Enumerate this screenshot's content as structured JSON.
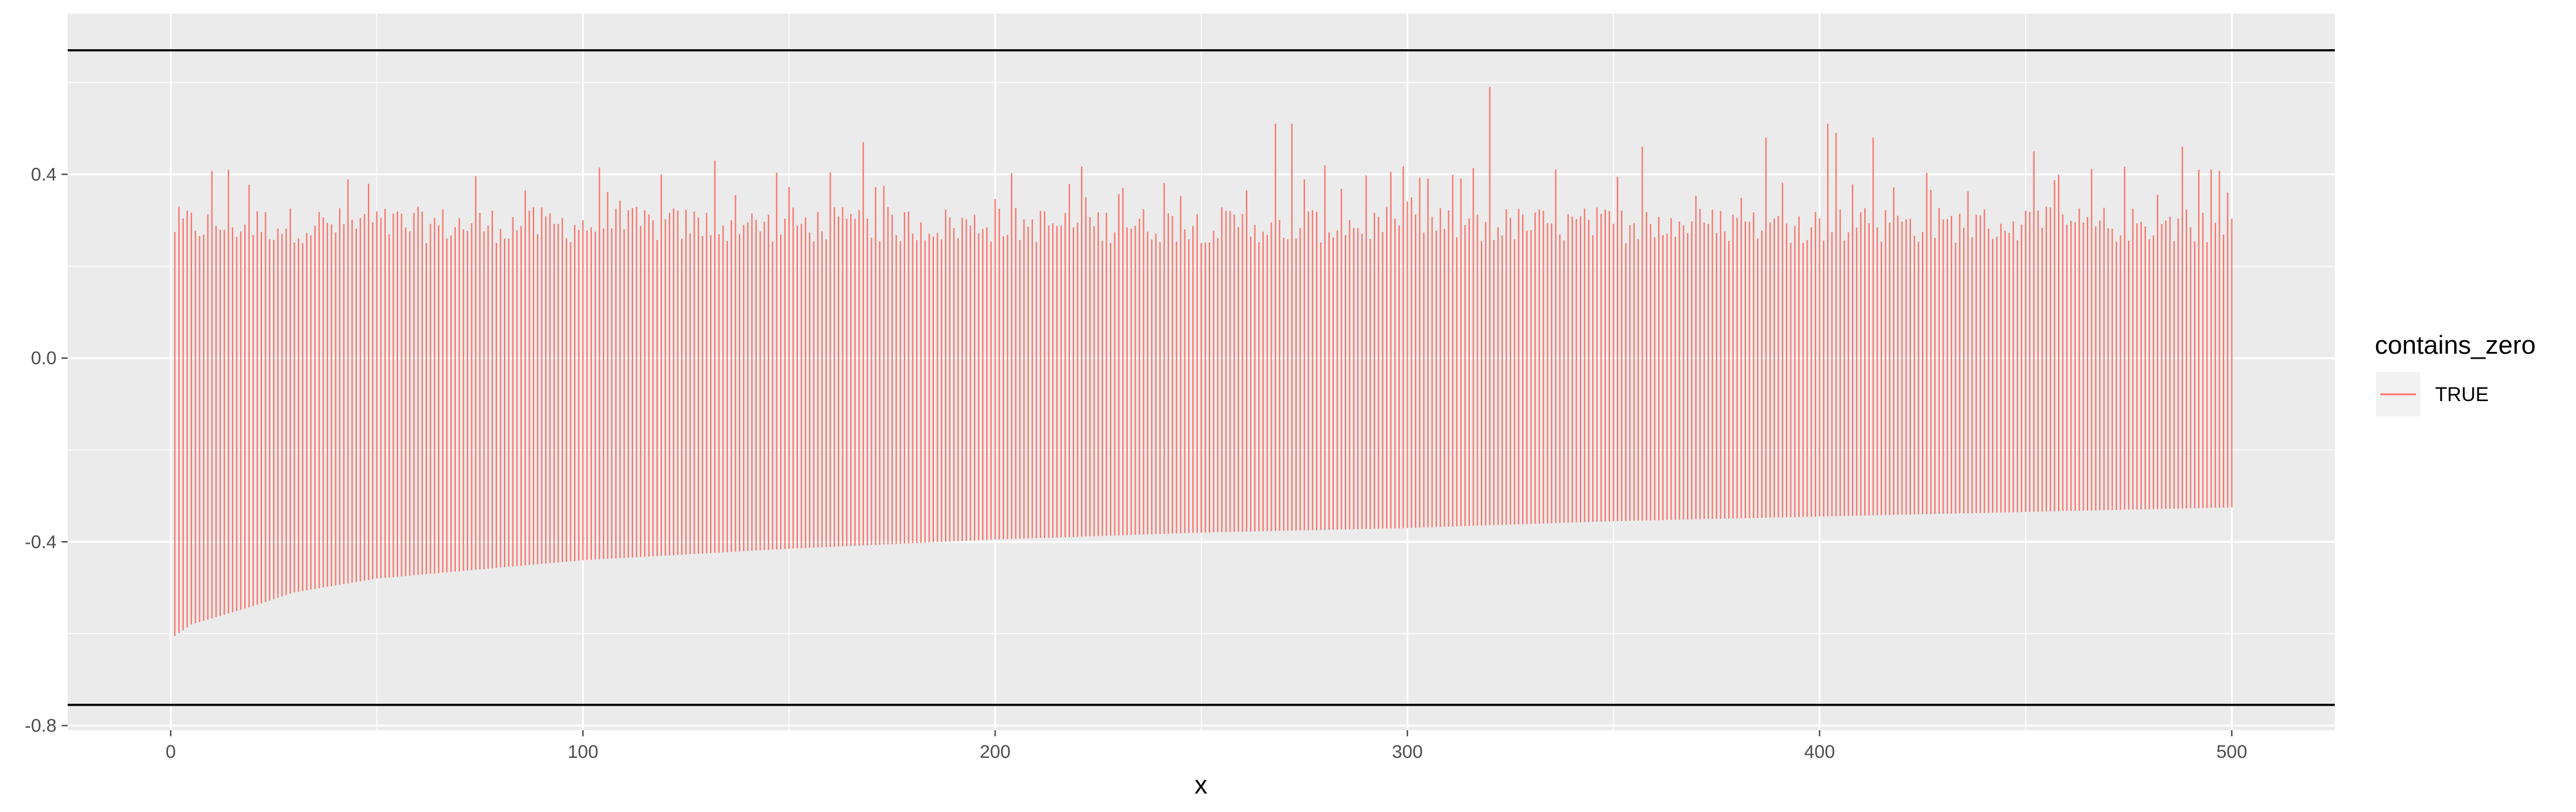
{
  "chart_data": {
    "type": "errorbar",
    "xlabel": "x",
    "ylabel": "",
    "xlim": [
      -25,
      525
    ],
    "ylim": [
      -0.81,
      0.75
    ],
    "x_ticks": [
      0,
      100,
      200,
      300,
      400,
      500
    ],
    "x_tick_labels": [
      "0",
      "100",
      "200",
      "300",
      "400",
      "500"
    ],
    "y_ticks": [
      -0.8,
      -0.4,
      0.0,
      0.4
    ],
    "y_tick_labels": [
      "-0.8",
      "-0.4",
      "0.0",
      "0.4"
    ],
    "hlines": [
      0.67,
      -0.755
    ],
    "n_intervals": 500,
    "x_start": 1,
    "lower_bounds": {
      "description": "sorted ascending lower CI bounds across x = 1..500",
      "anchors": [
        [
          1,
          -0.605
        ],
        [
          5,
          -0.58
        ],
        [
          20,
          -0.54
        ],
        [
          30,
          -0.51
        ],
        [
          50,
          -0.48
        ],
        [
          100,
          -0.44
        ],
        [
          150,
          -0.415
        ],
        [
          200,
          -0.395
        ],
        [
          250,
          -0.38
        ],
        [
          300,
          -0.37
        ],
        [
          350,
          -0.355
        ],
        [
          400,
          -0.345
        ],
        [
          450,
          -0.335
        ],
        [
          500,
          -0.325
        ]
      ]
    },
    "upper_bounds": {
      "typical_range": [
        0.25,
        0.33
      ],
      "max": 0.59
    },
    "series": [
      {
        "name": "TRUE",
        "color": "#F8766D"
      }
    ],
    "legend": {
      "title": "contains_zero",
      "position": "right",
      "items": [
        {
          "label": "TRUE",
          "color": "#F8766D"
        }
      ]
    },
    "grid": true,
    "panel_background": "#EBEBEB",
    "hline_color": "#000000"
  }
}
